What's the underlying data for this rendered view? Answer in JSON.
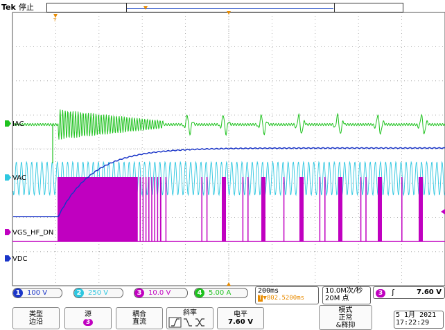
{
  "header": {
    "brand": "Tek",
    "state": "停止"
  },
  "channels": [
    {
      "id": "ch2",
      "name": "IAC",
      "color": "#1fc21f"
    },
    {
      "id": "ch2b",
      "name": "VAC",
      "color": "#2ec7e0"
    },
    {
      "id": "ch3",
      "name": "VGS_HF_DN",
      "color": "#c000c0"
    },
    {
      "id": "ch1",
      "name": "VDC",
      "color": "#1a35c8"
    }
  ],
  "scales": [
    {
      "num": "1",
      "value": "100 V",
      "color": "#1a35c8"
    },
    {
      "num": "2",
      "value": "250 V",
      "color": "#2ec7e0"
    },
    {
      "num": "3",
      "value": "10.0 V",
      "color": "#c000c0"
    },
    {
      "num": "4",
      "value": "5.00 A",
      "color": "#1fc21f"
    }
  ],
  "timebase": {
    "time_div": "200ms",
    "position": "▼802.5200ms",
    "sample_rate": "10.0M次/秒",
    "record_len": "20M 点"
  },
  "trigger": {
    "source_num": "3",
    "slope_symbol": "ʃ",
    "level": "7.60 V"
  },
  "menu": {
    "type_label": "类型",
    "type_value": "边沿",
    "source_label": "源",
    "source_num": "3",
    "coupling_label": "耦合",
    "coupling_value": "直流",
    "slope_label": "斜率",
    "level_label": "电平",
    "level_value": "7.60 V",
    "mode_label": "模式",
    "mode_value": "正常",
    "mode_value2": "&释抑"
  },
  "datetime": {
    "date": "5 1月  2021",
    "time": "17:22:29"
  },
  "markers": {
    "trigger_pos_label": "T",
    "readout_pos_label": "T"
  }
}
